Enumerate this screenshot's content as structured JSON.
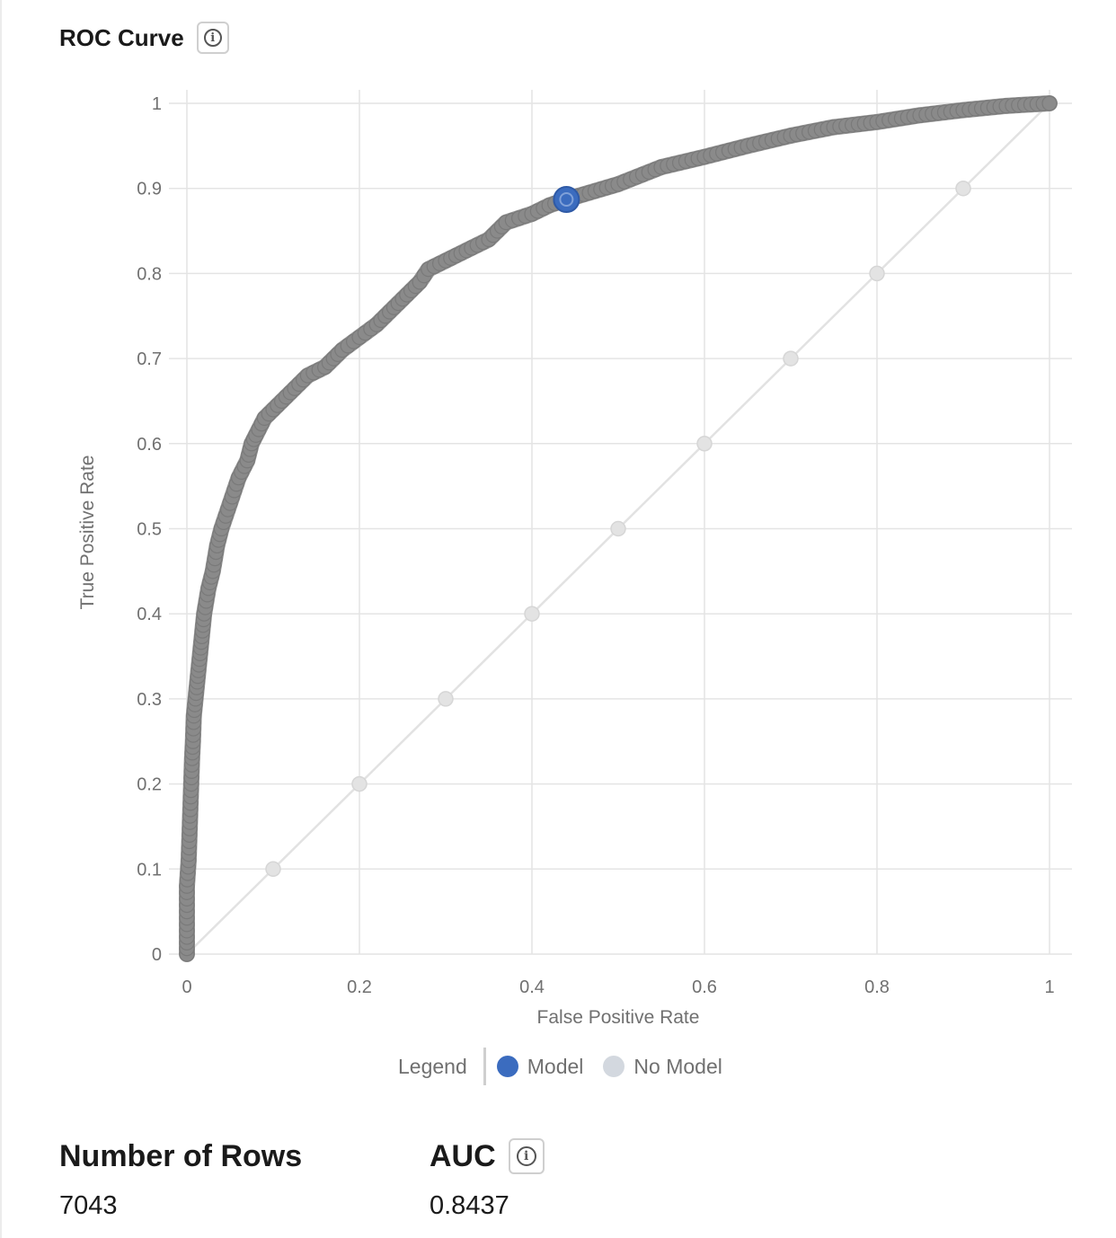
{
  "header": {
    "title": "ROC Curve",
    "info_icon": "info-circle-icon"
  },
  "chart_data": {
    "type": "scatter",
    "xlabel": "False Positive Rate",
    "ylabel": "True Positive Rate",
    "xlim": [
      0,
      1
    ],
    "ylim": [
      0,
      1
    ],
    "x_ticks": [
      "0",
      "0.2",
      "0.4",
      "0.6",
      "0.8",
      "1"
    ],
    "y_ticks": [
      "0",
      "0.1",
      "0.2",
      "0.3",
      "0.4",
      "0.5",
      "0.6",
      "0.7",
      "0.8",
      "0.9",
      "1"
    ],
    "grid": true,
    "legend_position": "bottom-center",
    "series": [
      {
        "name": "Model",
        "color": "#8a8a8a",
        "highlight_color": "#3b6cbf",
        "x": [
          0,
          0,
          0,
          0,
          0.002,
          0.003,
          0.004,
          0.005,
          0.006,
          0.007,
          0.008,
          0.01,
          0.012,
          0.014,
          0.016,
          0.018,
          0.02,
          0.025,
          0.03,
          0.035,
          0.04,
          0.05,
          0.06,
          0.07,
          0.075,
          0.08,
          0.09,
          0.1,
          0.12,
          0.13,
          0.14,
          0.16,
          0.18,
          0.2,
          0.22,
          0.25,
          0.27,
          0.28,
          0.3,
          0.33,
          0.35,
          0.37,
          0.4,
          0.42,
          0.44,
          0.5,
          0.55,
          0.6,
          0.65,
          0.7,
          0.75,
          0.8,
          0.85,
          0.9,
          0.95,
          1
        ],
        "y": [
          0,
          0.02,
          0.05,
          0.08,
          0.11,
          0.14,
          0.17,
          0.2,
          0.23,
          0.25,
          0.28,
          0.3,
          0.32,
          0.34,
          0.36,
          0.38,
          0.4,
          0.43,
          0.45,
          0.48,
          0.5,
          0.53,
          0.56,
          0.58,
          0.6,
          0.61,
          0.63,
          0.64,
          0.66,
          0.67,
          0.68,
          0.69,
          0.71,
          0.725,
          0.74,
          0.77,
          0.79,
          0.805,
          0.815,
          0.83,
          0.84,
          0.86,
          0.87,
          0.88,
          0.887,
          0.905,
          0.925,
          0.937,
          0.95,
          0.962,
          0.972,
          0.978,
          0.986,
          0.992,
          0.997,
          1
        ],
        "highlight_point": {
          "x": 0.44,
          "y": 0.887
        }
      },
      {
        "name": "No Model",
        "color": "#d6d6d6",
        "x": [
          0,
          0.1,
          0.2,
          0.3,
          0.4,
          0.5,
          0.6,
          0.7,
          0.8,
          0.9,
          1
        ],
        "y": [
          0,
          0.1,
          0.2,
          0.3,
          0.4,
          0.5,
          0.6,
          0.7,
          0.8,
          0.9,
          1
        ]
      }
    ]
  },
  "legend": {
    "title": "Legend",
    "items": [
      {
        "label": "Model",
        "color": "#3b6cbf"
      },
      {
        "label": "No Model",
        "color": "#d3d8df"
      }
    ]
  },
  "stats": {
    "rows": {
      "title": "Number of Rows",
      "value": "7043"
    },
    "auc": {
      "title": "AUC",
      "value": "0.8437",
      "info_icon": "info-circle-icon"
    }
  }
}
